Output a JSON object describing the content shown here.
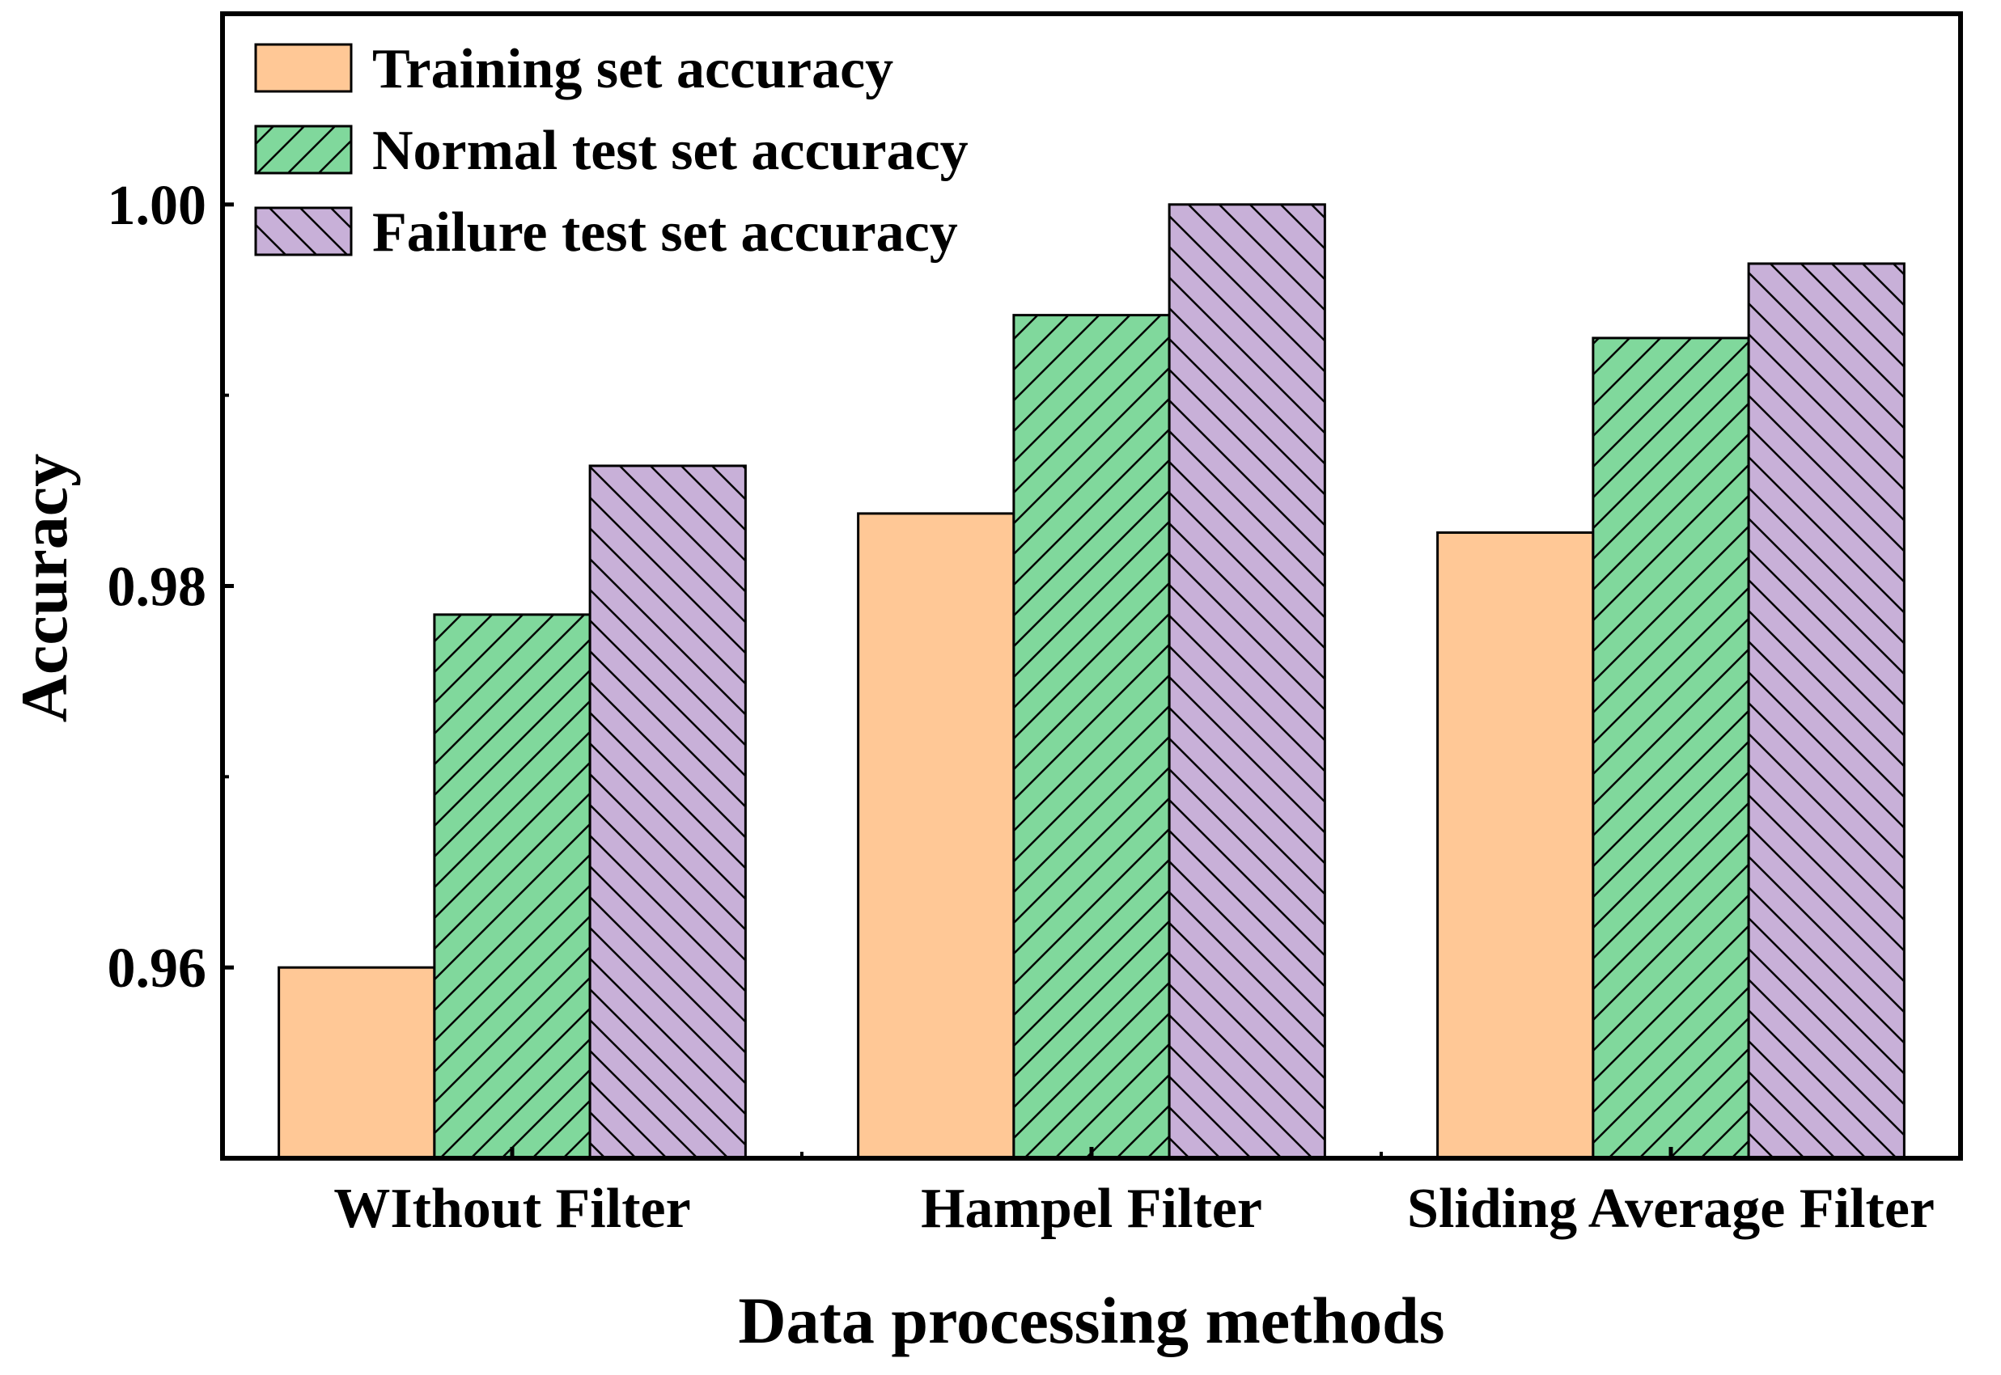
{
  "chart_data": {
    "type": "bar",
    "title": "",
    "xlabel": "Data processing methods",
    "ylabel": "Accuracy",
    "ylim": [
      0.95,
      1.01
    ],
    "yticks": [
      {
        "value": 0.96,
        "label": "0.96"
      },
      {
        "value": 0.98,
        "label": "0.98"
      },
      {
        "value": 1.0,
        "label": "1.00"
      }
    ],
    "minor_yticks": [
      0.97,
      0.99
    ],
    "categories": [
      "WIthout Filter",
      "Hampel Filter",
      "Sliding Average Filter"
    ],
    "series": [
      {
        "name": "Training set accuracy",
        "values": [
          0.96,
          0.9838,
          0.9828
        ],
        "color": "#FFC896",
        "hatch": "none"
      },
      {
        "name": "Normal test set accuracy",
        "values": [
          0.9785,
          0.9942,
          0.993
        ],
        "color": "#80D89C",
        "hatch": "forward"
      },
      {
        "name": "Failure test set accuracy",
        "values": [
          0.9863,
          1.0,
          0.9969
        ],
        "color": "#C8B0D8",
        "hatch": "backward"
      }
    ],
    "legend": {
      "position": "top-left"
    },
    "grid": false
  }
}
